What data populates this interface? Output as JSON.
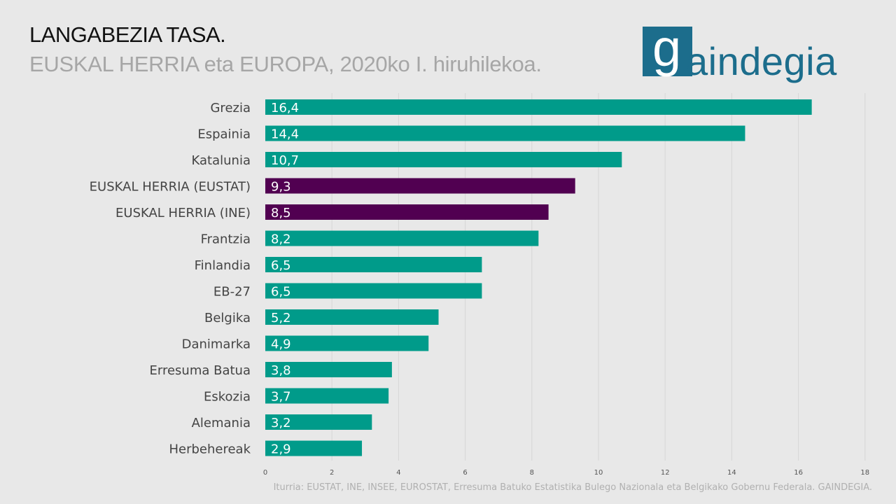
{
  "header": {
    "title": "LANGABEZIA TASA.",
    "subtitle": "EUSKAL HERRIA eta EUROPA, 2020ko I. hiruhilekoa."
  },
  "logo": {
    "text": "gaindegia",
    "color": "#1c6d8c"
  },
  "source": "Iturria: EUSTAT, INE, INSEE, EUROSTAT, Erresuma Batuko Estatistika Bulego Nazionala eta Belgikako Gobernu Federala. GAINDEGIA.",
  "colors": {
    "default_bar": "#009b8a",
    "highlight_bar": "#510051",
    "grid": "#d6d6d6",
    "background": "#e8e8e8"
  },
  "chart_data": {
    "type": "bar",
    "orientation": "horizontal",
    "title": "LANGABEZIA TASA.",
    "subtitle": "EUSKAL HERRIA eta EUROPA, 2020ko I. hiruhilekoa.",
    "categories": [
      "Grezia",
      "Espainia",
      "Katalunia",
      "EUSKAL HERRIA (EUSTAT)",
      "EUSKAL HERRIA (INE)",
      "Frantzia",
      "Finlandia",
      "EB-27",
      "Belgika",
      "Danimarka",
      "Erresuma Batua",
      "Eskozia",
      "Alemania",
      "Herbehereak"
    ],
    "values": [
      16.4,
      14.4,
      10.7,
      9.3,
      8.5,
      8.2,
      6.5,
      6.5,
      5.2,
      4.9,
      3.8,
      3.7,
      3.2,
      2.9
    ],
    "value_labels": [
      "16,4",
      "14,4",
      "10,7",
      "9,3",
      "8,5",
      "8,2",
      "6,5",
      "6,5",
      "5,2",
      "4,9",
      "3,8",
      "3,7",
      "3,2",
      "2,9"
    ],
    "highlighted": [
      false,
      false,
      false,
      true,
      true,
      false,
      false,
      false,
      false,
      false,
      false,
      false,
      false,
      false
    ],
    "xlim": [
      0,
      18
    ],
    "xticks": [
      0,
      2,
      4,
      6,
      8,
      10,
      12,
      14,
      16,
      18
    ],
    "grid": true,
    "xlabel": "",
    "ylabel": ""
  }
}
